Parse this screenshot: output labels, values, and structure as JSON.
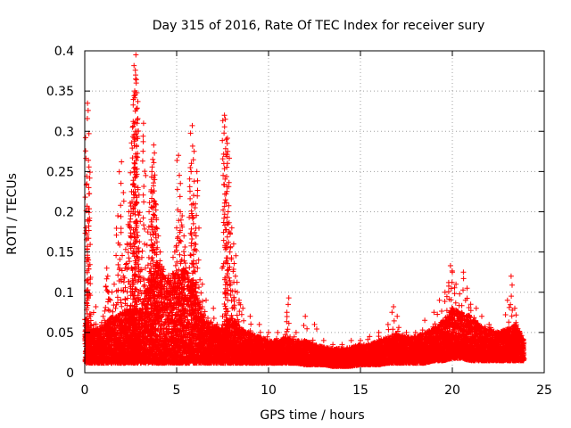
{
  "chart_data": {
    "type": "scatter",
    "title": "Day 315 of 2016, Rate Of TEC Index for receiver sury",
    "xlabel": "GPS time / hours",
    "ylabel": "ROTI / TECUs",
    "xlim": [
      0,
      25
    ],
    "ylim": [
      0,
      0.4
    ],
    "x_ticks": [
      0,
      5,
      10,
      15,
      20,
      25
    ],
    "x_tick_labels": [
      "0",
      "5",
      "10",
      "15",
      "20",
      "25"
    ],
    "y_ticks": [
      0,
      0.05,
      0.1,
      0.15,
      0.2,
      0.25,
      0.3,
      0.35,
      0.4
    ],
    "y_tick_labels": [
      "0",
      "0.05",
      "0.1",
      "0.15",
      "0.2",
      "0.25",
      "0.3",
      "0.35",
      "0.4"
    ],
    "grid": true,
    "marker": "+",
    "color": "#ff0000",
    "series": [
      {
        "name": "ROTI",
        "points": [
          [
            0.1,
            0.078
          ],
          [
            0.15,
            0.335
          ],
          [
            0.2,
            0.264
          ],
          [
            0.22,
            0.23
          ],
          [
            0.18,
            0.19
          ],
          [
            0.2,
            0.14
          ],
          [
            0.3,
            0.07
          ],
          [
            0.5,
            0.06
          ],
          [
            0.6,
            0.082
          ],
          [
            0.8,
            0.05
          ],
          [
            1.0,
            0.07
          ],
          [
            1.2,
            0.13
          ],
          [
            1.25,
            0.12
          ],
          [
            1.3,
            0.1
          ],
          [
            1.4,
            0.09
          ],
          [
            1.6,
            0.11
          ],
          [
            1.8,
            0.195
          ],
          [
            1.9,
            0.13
          ],
          [
            2.0,
            0.262
          ],
          [
            2.1,
            0.12
          ],
          [
            2.2,
            0.13
          ],
          [
            2.3,
            0.16
          ],
          [
            2.4,
            0.2
          ],
          [
            2.5,
            0.195
          ],
          [
            2.55,
            0.225
          ],
          [
            2.6,
            0.305
          ],
          [
            2.7,
            0.31
          ],
          [
            2.72,
            0.35
          ],
          [
            2.75,
            0.376
          ],
          [
            2.78,
            0.395
          ],
          [
            2.8,
            0.36
          ],
          [
            2.85,
            0.3
          ],
          [
            2.9,
            0.23
          ],
          [
            2.95,
            0.15
          ],
          [
            3.0,
            0.12
          ],
          [
            3.2,
            0.31
          ],
          [
            3.3,
            0.13
          ],
          [
            3.4,
            0.1
          ],
          [
            3.5,
            0.2
          ],
          [
            3.6,
            0.225
          ],
          [
            3.65,
            0.25
          ],
          [
            3.7,
            0.265
          ],
          [
            3.75,
            0.283
          ],
          [
            3.8,
            0.24
          ],
          [
            3.85,
            0.21
          ],
          [
            3.9,
            0.19
          ],
          [
            4.0,
            0.17
          ],
          [
            4.1,
            0.15
          ],
          [
            4.2,
            0.13
          ],
          [
            4.3,
            0.12
          ],
          [
            4.5,
            0.1
          ],
          [
            4.7,
            0.09
          ],
          [
            4.9,
            0.15
          ],
          [
            5.0,
            0.18
          ],
          [
            5.1,
            0.27
          ],
          [
            5.2,
            0.2
          ],
          [
            5.3,
            0.195
          ],
          [
            5.4,
            0.17
          ],
          [
            5.5,
            0.13
          ],
          [
            5.6,
            0.12
          ],
          [
            5.8,
            0.26
          ],
          [
            5.85,
            0.307
          ],
          [
            5.9,
            0.21
          ],
          [
            6.0,
            0.205
          ],
          [
            6.1,
            0.25
          ],
          [
            6.2,
            0.14
          ],
          [
            6.4,
            0.11
          ],
          [
            6.6,
            0.09
          ],
          [
            7.0,
            0.08
          ],
          [
            7.2,
            0.06
          ],
          [
            7.5,
            0.07
          ],
          [
            7.6,
            0.32
          ],
          [
            7.65,
            0.315
          ],
          [
            7.7,
            0.29
          ],
          [
            7.75,
            0.285
          ],
          [
            7.8,
            0.2
          ],
          [
            7.9,
            0.15
          ],
          [
            8.0,
            0.18
          ],
          [
            8.1,
            0.16
          ],
          [
            8.2,
            0.12
          ],
          [
            8.3,
            0.1
          ],
          [
            8.4,
            0.09
          ],
          [
            8.6,
            0.08
          ],
          [
            9.0,
            0.07
          ],
          [
            9.5,
            0.06
          ],
          [
            10.0,
            0.05
          ],
          [
            10.5,
            0.05
          ],
          [
            11.0,
            0.075
          ],
          [
            11.1,
            0.093
          ],
          [
            11.5,
            0.05
          ],
          [
            12.0,
            0.07
          ],
          [
            12.5,
            0.06
          ],
          [
            13.0,
            0.04
          ],
          [
            13.5,
            0.035
          ],
          [
            14.0,
            0.035
          ],
          [
            14.5,
            0.04
          ],
          [
            15.0,
            0.04
          ],
          [
            15.5,
            0.045
          ],
          [
            16.0,
            0.05
          ],
          [
            16.5,
            0.06
          ],
          [
            16.8,
            0.082
          ],
          [
            17.0,
            0.07
          ],
          [
            17.5,
            0.05
          ],
          [
            18.0,
            0.05
          ],
          [
            18.5,
            0.065
          ],
          [
            19.0,
            0.075
          ],
          [
            19.3,
            0.09
          ],
          [
            19.6,
            0.1
          ],
          [
            19.8,
            0.112
          ],
          [
            19.9,
            0.133
          ],
          [
            20.0,
            0.125
          ],
          [
            20.2,
            0.11
          ],
          [
            20.4,
            0.098
          ],
          [
            20.6,
            0.125
          ],
          [
            20.8,
            0.105
          ],
          [
            21.0,
            0.085
          ],
          [
            21.3,
            0.08
          ],
          [
            21.6,
            0.07
          ],
          [
            22.0,
            0.06
          ],
          [
            22.5,
            0.05
          ],
          [
            23.0,
            0.09
          ],
          [
            23.2,
            0.12
          ],
          [
            23.4,
            0.08
          ],
          [
            23.6,
            0.05
          ],
          [
            23.8,
            0.03
          ]
        ]
      }
    ],
    "envelope": {
      "x": [
        0,
        0.5,
        1,
        1.5,
        2,
        2.5,
        3,
        3.5,
        4,
        4.5,
        5,
        5.5,
        6,
        6.5,
        7,
        7.5,
        8,
        8.5,
        9,
        9.5,
        10,
        10.5,
        11,
        11.5,
        12,
        12.5,
        13,
        13.5,
        14,
        14.5,
        15,
        15.5,
        16,
        16.5,
        17,
        17.5,
        18,
        18.5,
        19,
        19.5,
        20,
        20.5,
        21,
        21.5,
        22,
        22.5,
        23,
        23.5,
        23.9
      ],
      "low": [
        0.012,
        0.012,
        0.012,
        0.012,
        0.012,
        0.012,
        0.012,
        0.012,
        0.012,
        0.012,
        0.012,
        0.012,
        0.012,
        0.012,
        0.012,
        0.012,
        0.012,
        0.012,
        0.012,
        0.012,
        0.012,
        0.012,
        0.012,
        0.012,
        0.01,
        0.01,
        0.01,
        0.008,
        0.008,
        0.008,
        0.01,
        0.01,
        0.01,
        0.012,
        0.012,
        0.012,
        0.012,
        0.012,
        0.015,
        0.015,
        0.018,
        0.018,
        0.015,
        0.015,
        0.015,
        0.015,
        0.015,
        0.015,
        0.015
      ],
      "high": [
        0.07,
        0.055,
        0.06,
        0.07,
        0.075,
        0.08,
        0.08,
        0.12,
        0.14,
        0.12,
        0.13,
        0.13,
        0.11,
        0.07,
        0.06,
        0.055,
        0.07,
        0.055,
        0.05,
        0.045,
        0.04,
        0.04,
        0.045,
        0.04,
        0.04,
        0.035,
        0.032,
        0.03,
        0.03,
        0.032,
        0.035,
        0.035,
        0.04,
        0.045,
        0.05,
        0.045,
        0.045,
        0.05,
        0.055,
        0.065,
        0.08,
        0.075,
        0.07,
        0.06,
        0.055,
        0.05,
        0.055,
        0.06,
        0.04
      ]
    }
  }
}
